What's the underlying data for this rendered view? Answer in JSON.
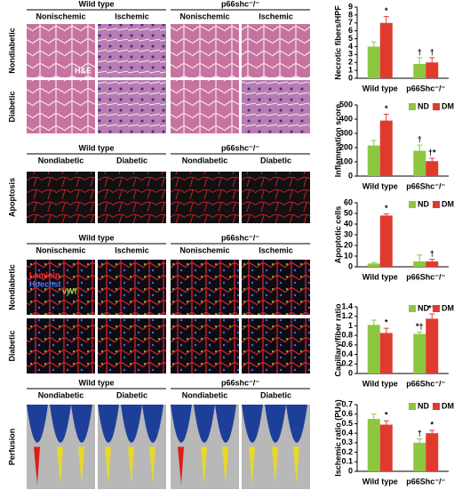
{
  "panels": {
    "he": {
      "headers": [
        "Wild type",
        "p66shc⁻/⁻"
      ],
      "columns": [
        "Nonischemic",
        "Ischemic",
        "Nonischemic",
        "Ischemic"
      ],
      "rows": [
        "Nondiabetic",
        "Diabetic"
      ],
      "inset": "H&E"
    },
    "apoptosis": {
      "headers": [
        "Wild type",
        "p66shc⁻/⁻"
      ],
      "columns": [
        "Nondiabetic",
        "Diabetic",
        "Nondiabetic",
        "Diabetic"
      ],
      "rows": [
        "Apoptosis"
      ]
    },
    "capillary": {
      "headers": [
        "Wild type",
        "p66shc⁻/⁻"
      ],
      "columns": [
        "Nonischemic",
        "Ischemic",
        "Nonischemic",
        "Ischemic"
      ],
      "rows": [
        "Nondiabetic",
        "Diabetic"
      ],
      "stains": [
        "Laminin",
        "Hoechst",
        "vWf"
      ]
    },
    "perfusion": {
      "headers": [
        "Wild type",
        "p66shc⁻/⁻"
      ],
      "columns": [
        "Nondiabetic",
        "Diabetic",
        "Nondiabetic",
        "Diabetic"
      ],
      "rows": [
        "Perfusion"
      ]
    }
  },
  "chart_data": [
    {
      "type": "bar",
      "y_label": "Necrotic fibers/HPF",
      "categories": [
        "Wild type",
        "p66Shc⁻/⁻"
      ],
      "series": [
        {
          "color": "#8dc63f",
          "values": [
            4,
            1.8
          ],
          "errors": [
            0.6,
            0.8
          ],
          "annotations": [
            null,
            "†"
          ]
        },
        {
          "color": "#e03a2f",
          "values": [
            7,
            2.0
          ],
          "errors": [
            0.8,
            0.6
          ],
          "annotations": [
            "*",
            "†"
          ]
        }
      ],
      "ylim": [
        0,
        9
      ],
      "yticks": [
        0,
        1,
        2,
        3,
        4,
        5,
        6,
        7,
        8,
        9
      ]
    },
    {
      "type": "bar",
      "y_label": "Inflammation score",
      "categories": [
        "Wild type",
        "p66Shc⁻/⁻"
      ],
      "legend": "upper right",
      "series": [
        {
          "name": "ND",
          "color": "#8dc63f",
          "values": [
            215,
            178
          ],
          "errors": [
            35,
            40
          ],
          "annotations": [
            null,
            "†"
          ]
        },
        {
          "name": "DM",
          "color": "#e03a2f",
          "values": [
            390,
            105
          ],
          "errors": [
            45,
            20
          ],
          "annotations": [
            "*",
            "†*"
          ]
        }
      ],
      "ylim": [
        0,
        500
      ],
      "yticks": [
        0,
        100,
        200,
        300,
        400,
        500
      ]
    },
    {
      "type": "bar",
      "y_label": "Apoptotic cells",
      "categories": [
        "Wild type",
        "p66Shc⁻/⁻"
      ],
      "legend": "upper right",
      "series": [
        {
          "name": "ND",
          "color": "#8dc63f",
          "values": [
            3,
            5
          ],
          "errors": [
            1,
            6
          ],
          "annotations": [
            null,
            null
          ]
        },
        {
          "name": "DM",
          "color": "#e03a2f",
          "values": [
            48,
            5
          ],
          "errors": [
            1.5,
            2
          ],
          "annotations": [
            "*",
            "†"
          ]
        }
      ],
      "ylim": [
        0,
        60
      ],
      "yticks": [
        0,
        10,
        20,
        30,
        40,
        50,
        60
      ]
    },
    {
      "type": "bar",
      "y_label": "Capillary/fiber ratio",
      "categories": [
        "Wild type",
        "p66Shc⁻/⁻"
      ],
      "legend": "upper right",
      "series": [
        {
          "name": "ND",
          "color": "#8dc63f",
          "values": [
            1.02,
            0.83
          ],
          "errors": [
            0.1,
            0.04
          ],
          "annotations": [
            null,
            "*†"
          ]
        },
        {
          "name": "DM",
          "color": "#e03a2f",
          "values": [
            0.85,
            1.15
          ],
          "errors": [
            0.1,
            0.1
          ],
          "annotations": [
            "*",
            "*†"
          ]
        }
      ],
      "ylim": [
        0,
        1.4
      ],
      "yticks": [
        0,
        0.2,
        0.4,
        0.6,
        0.8,
        1,
        1.2,
        1.4
      ]
    },
    {
      "type": "bar",
      "y_label": "Ischemic ratio (PUs)",
      "categories": [
        "Wild type",
        "p66Shc⁻/⁻"
      ],
      "legend": "upper right",
      "series": [
        {
          "name": "ND",
          "color": "#8dc63f",
          "values": [
            0.55,
            0.3
          ],
          "errors": [
            0.05,
            0.04
          ],
          "annotations": [
            null,
            "†"
          ]
        },
        {
          "name": "DM",
          "color": "#e03a2f",
          "values": [
            0.49,
            0.4
          ],
          "errors": [
            0.04,
            0.03
          ],
          "annotations": [
            "*",
            "*"
          ]
        }
      ],
      "ylim": [
        0,
        0.7
      ],
      "yticks": [
        0,
        0.1,
        0.2,
        0.3,
        0.4,
        0.5,
        0.6,
        0.7
      ]
    }
  ]
}
